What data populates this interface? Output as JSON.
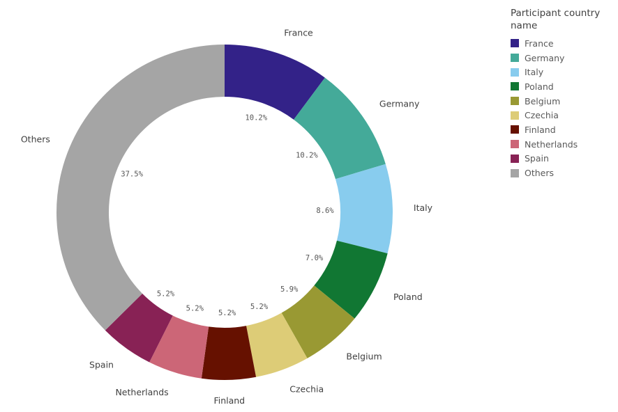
{
  "legend": {
    "title": "Participant country name",
    "items": [
      {
        "label": "France",
        "color": "#332288"
      },
      {
        "label": "Germany",
        "color": "#44aa99"
      },
      {
        "label": "Italy",
        "color": "#88ccee"
      },
      {
        "label": "Poland",
        "color": "#117733"
      },
      {
        "label": "Belgium",
        "color": "#999933"
      },
      {
        "label": "Czechia",
        "color": "#ddcc77"
      },
      {
        "label": "Finland",
        "color": "#661100"
      },
      {
        "label": "Netherlands",
        "color": "#cc6677"
      },
      {
        "label": "Spain",
        "color": "#882255"
      },
      {
        "label": "Others",
        "color": "#a5a5a5"
      }
    ]
  },
  "chart_data": {
    "type": "pie",
    "subtype": "donut",
    "title": "",
    "legend_title": "Participant country name",
    "legend_position": "right",
    "categories": [
      "France",
      "Germany",
      "Italy",
      "Poland",
      "Belgium",
      "Czechia",
      "Finland",
      "Netherlands",
      "Spain",
      "Others"
    ],
    "values": [
      10.2,
      10.2,
      8.6,
      7.0,
      5.9,
      5.2,
      5.2,
      5.2,
      5.2,
      37.5
    ],
    "value_labels": [
      "10.2%",
      "10.2%",
      "8.6%",
      "7.0%",
      "5.9%",
      "5.2%",
      "5.2%",
      "5.2%",
      "5.2%",
      "37.5%"
    ],
    "colors": [
      "#332288",
      "#44aa99",
      "#88ccee",
      "#117733",
      "#999933",
      "#ddcc77",
      "#661100",
      "#cc6677",
      "#882255",
      "#a5a5a5"
    ],
    "unit": "%"
  }
}
